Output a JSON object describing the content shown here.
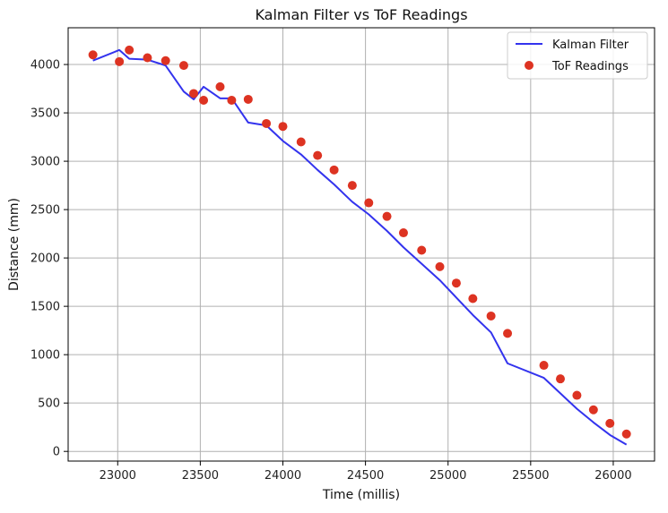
{
  "chart_data": {
    "type": "line",
    "title": "Kalman Filter vs ToF Readings",
    "xlabel": "Time (millis)",
    "ylabel": "Distance (mm)",
    "xlim": [
      22700,
      26250
    ],
    "ylim": [
      -100,
      4380
    ],
    "xticks": [
      23000,
      23500,
      24000,
      24500,
      25000,
      25500,
      26000
    ],
    "yticks": [
      0,
      500,
      1000,
      1500,
      2000,
      2500,
      3000,
      3500,
      4000
    ],
    "grid": true,
    "legend_position": "top-right",
    "series": [
      {
        "name": "Kalman Filter",
        "kind": "line",
        "color": "#3333ee",
        "x": [
          22850,
          23010,
          23070,
          23180,
          23290,
          23400,
          23460,
          23520,
          23620,
          23690,
          23790,
          23900,
          24000,
          24110,
          24210,
          24310,
          24420,
          24520,
          24630,
          24730,
          24840,
          24950,
          25050,
          25150,
          25260,
          25360,
          25580,
          25680,
          25780,
          25880,
          25980,
          26080
        ],
        "y": [
          4040,
          4150,
          4060,
          4050,
          3990,
          3720,
          3640,
          3770,
          3650,
          3650,
          3400,
          3370,
          3210,
          3070,
          2910,
          2760,
          2580,
          2450,
          2280,
          2110,
          1940,
          1770,
          1590,
          1410,
          1230,
          910,
          760,
          600,
          440,
          300,
          170,
          70
        ]
      },
      {
        "name": "ToF Readings",
        "kind": "scatter",
        "color": "#dd3322",
        "x": [
          22850,
          23010,
          23070,
          23180,
          23290,
          23400,
          23460,
          23520,
          23620,
          23690,
          23790,
          23900,
          24000,
          24110,
          24210,
          24310,
          24420,
          24520,
          24630,
          24730,
          24840,
          24950,
          25050,
          25150,
          25260,
          25360,
          25580,
          25680,
          25780,
          25880,
          25980,
          26080
        ],
        "y": [
          4100,
          4030,
          4150,
          4070,
          4040,
          3990,
          3700,
          3630,
          3770,
          3630,
          3640,
          3390,
          3360,
          3200,
          3060,
          2910,
          2750,
          2570,
          2430,
          2260,
          2080,
          1910,
          1740,
          1580,
          1400,
          1220,
          890,
          750,
          580,
          430,
          290,
          180
        ]
      }
    ]
  }
}
